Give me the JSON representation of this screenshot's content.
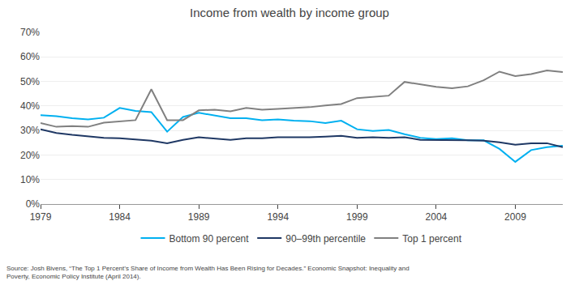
{
  "chart_data": {
    "type": "line",
    "title": "Income from wealth by income group",
    "x": [
      1979,
      1980,
      1981,
      1982,
      1983,
      1984,
      1985,
      1986,
      1987,
      1988,
      1989,
      1990,
      1991,
      1992,
      1993,
      1994,
      1995,
      1996,
      1997,
      1998,
      1999,
      2000,
      2001,
      2002,
      2003,
      2004,
      2005,
      2006,
      2007,
      2008,
      2009,
      2010,
      2011,
      2012
    ],
    "series": [
      {
        "name": "Bottom 90 percent",
        "color": "#00B0F0",
        "values": [
          0.362,
          0.358,
          0.35,
          0.345,
          0.352,
          0.392,
          0.38,
          0.375,
          0.295,
          0.355,
          0.372,
          0.362,
          0.35,
          0.35,
          0.342,
          0.345,
          0.34,
          0.338,
          0.33,
          0.34,
          0.305,
          0.298,
          0.302,
          0.285,
          0.27,
          0.265,
          0.268,
          0.26,
          0.26,
          0.225,
          0.172,
          0.22,
          0.232,
          0.238
        ]
      },
      {
        "name": "90–99th percentile",
        "color": "#1F3864",
        "values": [
          0.305,
          0.29,
          0.282,
          0.275,
          0.27,
          0.268,
          0.262,
          0.258,
          0.248,
          0.262,
          0.272,
          0.268,
          0.262,
          0.268,
          0.268,
          0.272,
          0.272,
          0.272,
          0.275,
          0.278,
          0.27,
          0.272,
          0.27,
          0.272,
          0.262,
          0.262,
          0.262,
          0.26,
          0.258,
          0.252,
          0.242,
          0.248,
          0.248,
          0.232
        ]
      },
      {
        "name": "Top 1 percent",
        "color": "#808080",
        "values": [
          0.33,
          0.315,
          0.318,
          0.315,
          0.332,
          0.338,
          0.342,
          0.468,
          0.342,
          0.342,
          0.382,
          0.385,
          0.378,
          0.392,
          0.385,
          0.388,
          0.392,
          0.395,
          0.402,
          0.408,
          0.432,
          0.438,
          0.442,
          0.498,
          0.488,
          0.478,
          0.472,
          0.48,
          0.505,
          0.54,
          0.522,
          0.53,
          0.545,
          0.538
        ]
      }
    ],
    "xlim": [
      1979,
      2012
    ],
    "xticks": [
      1979,
      1984,
      1989,
      1994,
      1999,
      2004,
      2009
    ],
    "ylim": [
      0,
      0.7
    ],
    "yticks": [
      {
        "value": 0,
        "label": "0%"
      },
      {
        "value": 0.1,
        "label": "10%"
      },
      {
        "value": 0.2,
        "label": "20%"
      },
      {
        "value": 0.3,
        "label": "30%"
      },
      {
        "value": 0.4,
        "label": "40%"
      },
      {
        "value": 0.5,
        "label": "50%"
      },
      {
        "value": 0.6,
        "label": "60%"
      },
      {
        "value": 0.7,
        "label": "70%"
      }
    ],
    "grid": true,
    "legend": "bottom",
    "annotations": [
      "Source: Josh Bivens, “The Top 1 Percent’s Share of Income from Wealth Has Been Rising for Decades.” Economic Snapshot: Inequality and\nPoverty, Economic Policy Institute (April 2014)."
    ]
  }
}
